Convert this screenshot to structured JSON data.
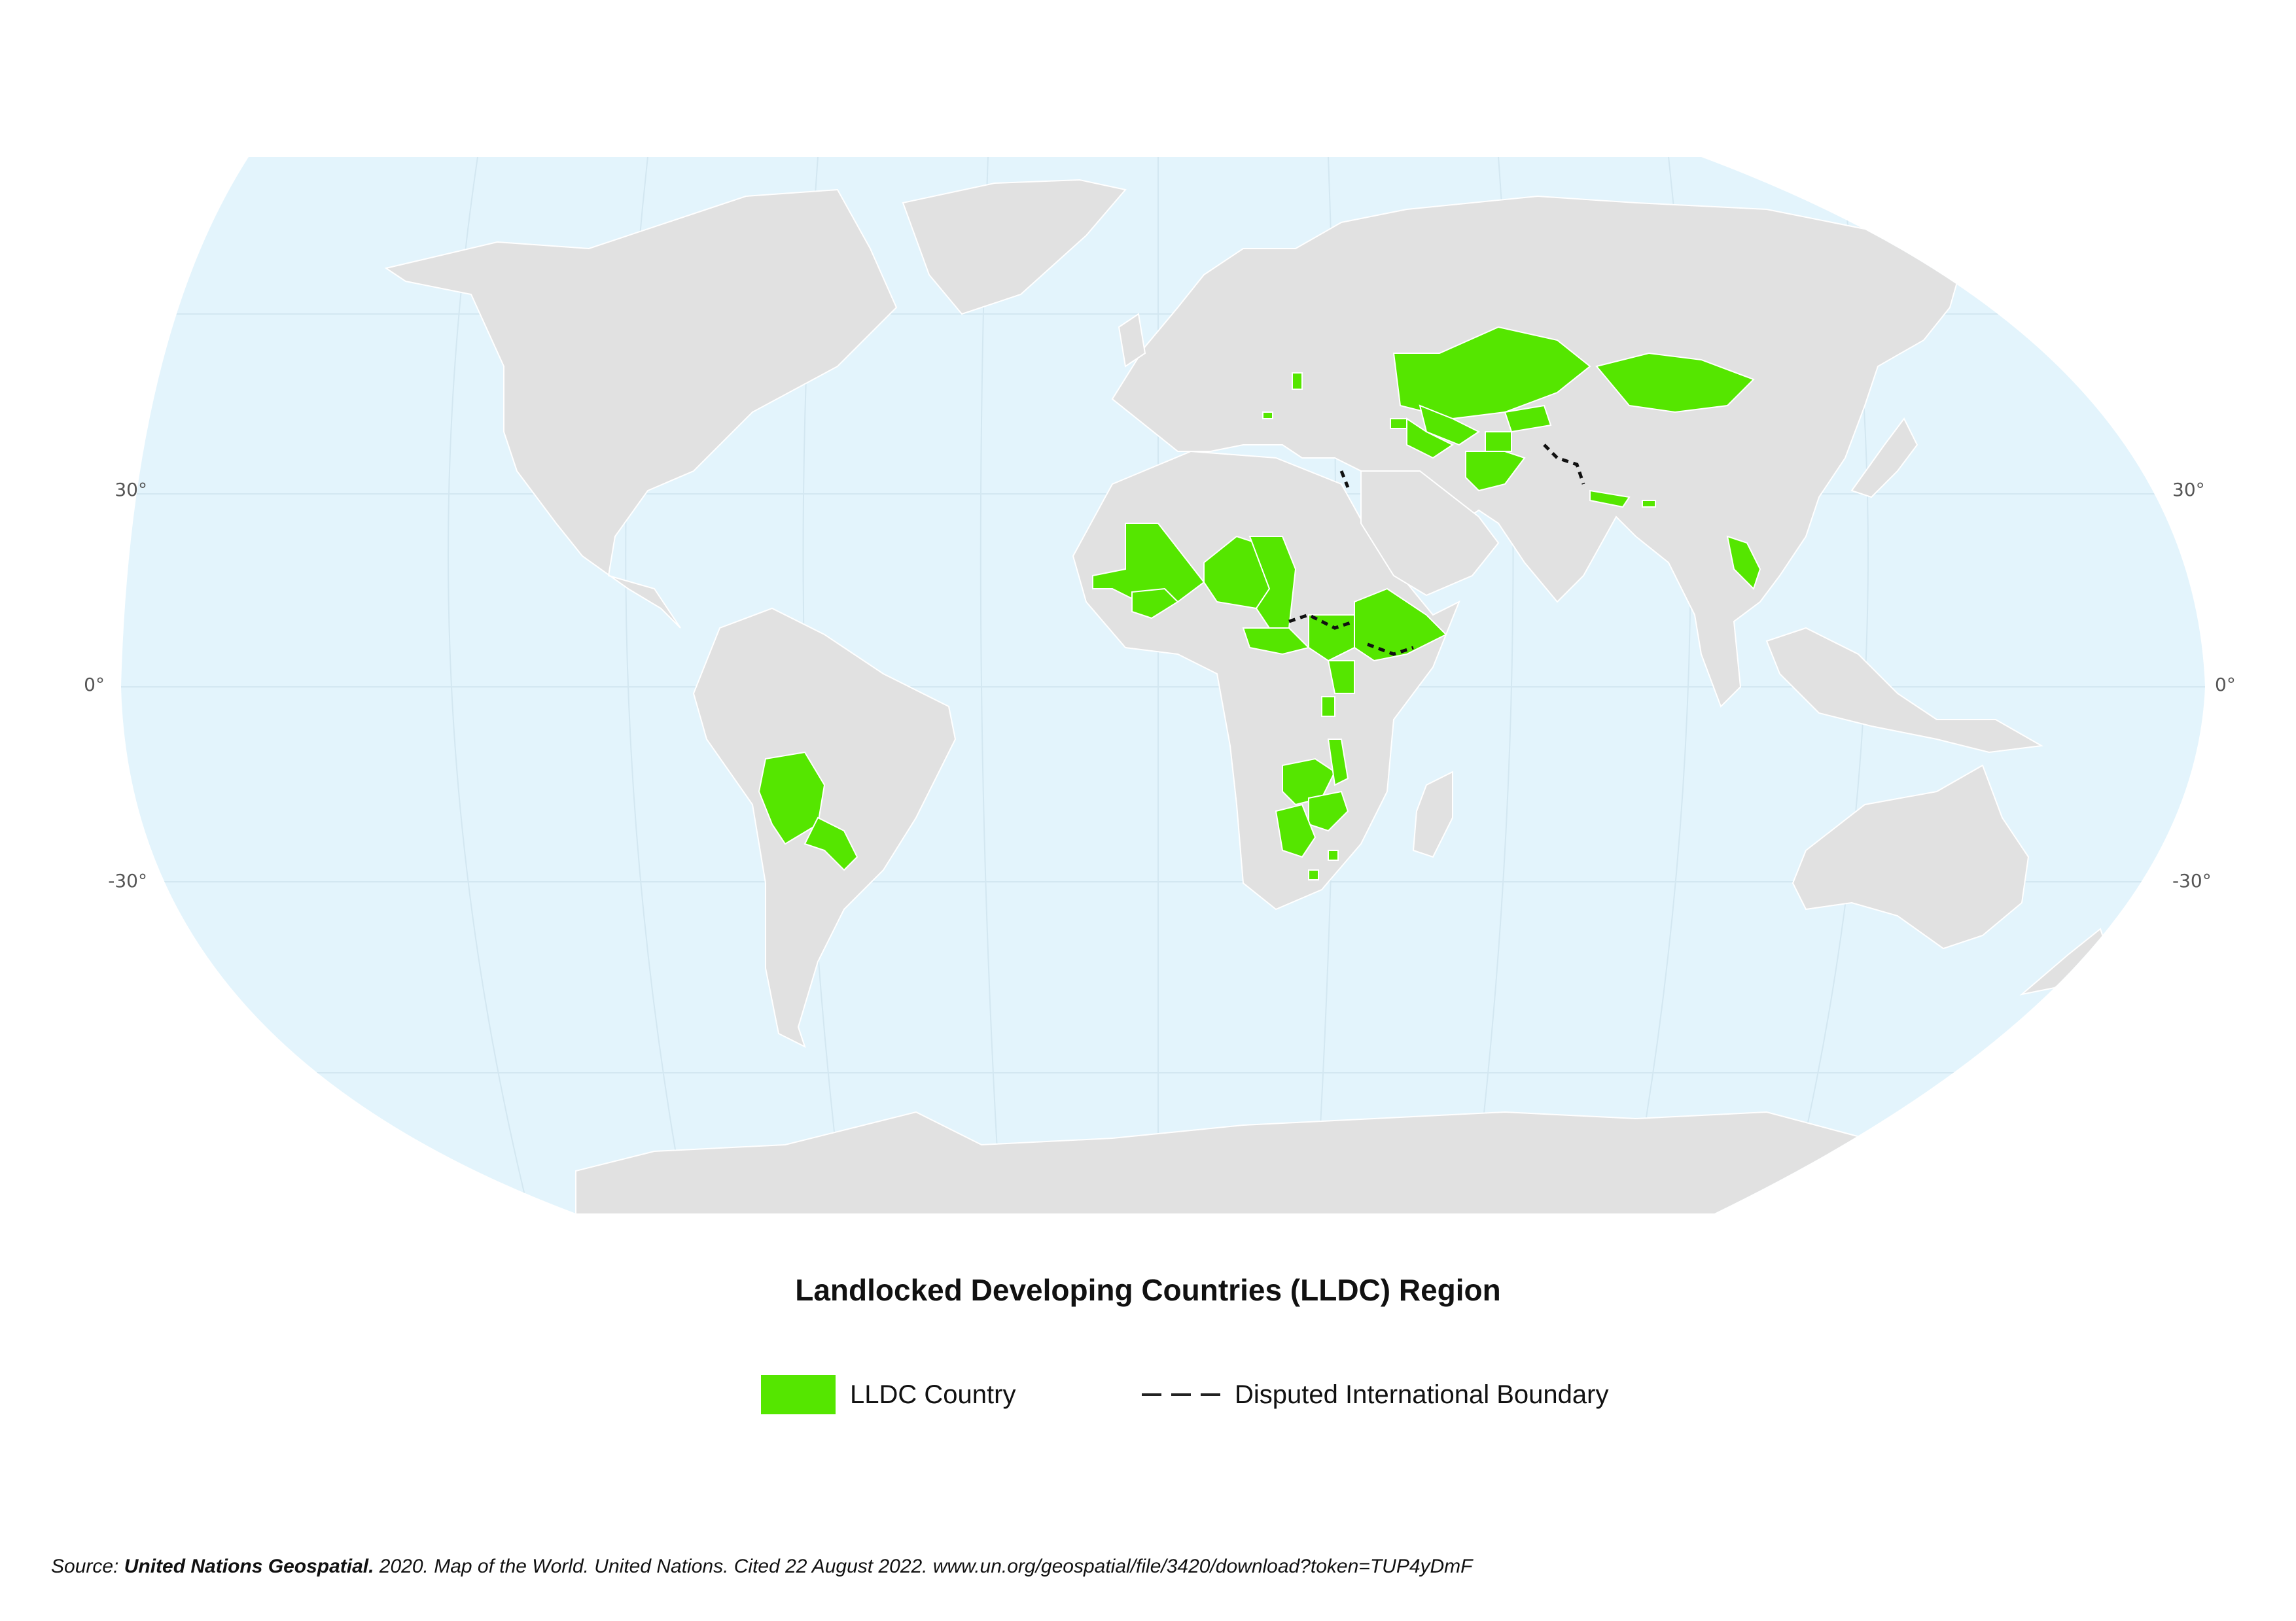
{
  "map": {
    "title": "Landlocked Developing Countries (LLDC) Region",
    "colors": {
      "ocean": "#e3f4fc",
      "land": "#e1e1e1",
      "lldc": "#55e600",
      "graticule": "#d3e7f1",
      "border": "#ffffff",
      "disputed": "#111111"
    },
    "latitude_labels": {
      "north_30": "30°",
      "equator": "0°",
      "south_30": "-30°"
    },
    "lldc_countries": [
      "Afghanistan",
      "Armenia",
      "Azerbaijan",
      "Bhutan",
      "Bolivia",
      "Botswana",
      "Burkina Faso",
      "Burundi",
      "Central African Republic",
      "Chad",
      "Eswatini",
      "Ethiopia",
      "Kazakhstan",
      "Kyrgyzstan",
      "Lao People's Democratic Republic",
      "Lesotho",
      "Malawi",
      "Mali",
      "Mongolia",
      "Nepal",
      "Niger",
      "North Macedonia",
      "Paraguay",
      "Republic of Moldova",
      "Rwanda",
      "South Sudan",
      "Tajikistan",
      "Turkmenistan",
      "Uganda",
      "Uzbekistan",
      "Zambia",
      "Zimbabwe"
    ]
  },
  "legend": {
    "lldc_label": "LLDC Country",
    "disputed_label": "Disputed International Boundary"
  },
  "source": {
    "prefix": "Source:  ",
    "org": "United Nations Geospatial.",
    "rest": " 2020.  Map of the World. United Nations. Cited 22 August 2022. www.un.org/geospatial/file/3420/download?token=TUP4yDmF"
  }
}
